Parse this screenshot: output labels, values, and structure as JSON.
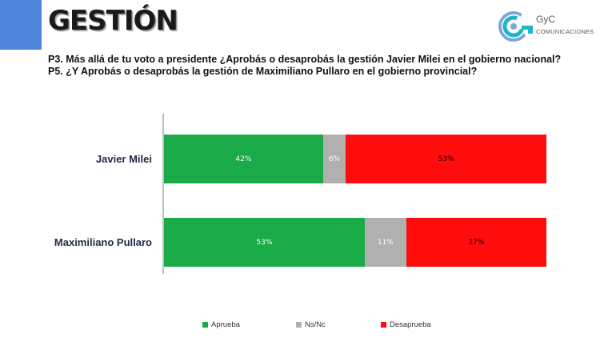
{
  "slide": {
    "title": "GESTIÓN",
    "logo": {
      "name": "GyC",
      "subtitle": "COMUNICACIONES"
    },
    "questions": [
      "P3. Más allá de tu voto a presidente ¿Aprobás o desaprobás la gestión Javier Milei en el gobierno nacional?",
      "P5. ¿Y Aprobás o desaprobás la gestión de Maximiliano Pullaro en el gobierno provincial?"
    ]
  },
  "colors": {
    "accent": "#4f86d9",
    "aprueba": "#1aaa47",
    "nsnc": "#b0b0b0",
    "desaprueba": "#ff0d0d"
  },
  "chart_data": {
    "type": "bar",
    "orientation": "horizontal",
    "stacked": true,
    "categories": [
      "Javier Milei",
      "Maximiliano Pullaro"
    ],
    "series": [
      {
        "name": "Aprueba",
        "values": [
          42,
          53
        ],
        "labels": [
          "42%",
          "53%"
        ],
        "color": "#1aaa47",
        "label_color": "#ffffff"
      },
      {
        "name": "Ns/Nc",
        "values": [
          6,
          11
        ],
        "labels": [
          "6%",
          "11%"
        ],
        "color": "#b0b0b0",
        "label_color": "#ffffff"
      },
      {
        "name": "Desaprueba",
        "values": [
          53,
          37
        ],
        "labels": [
          "53%",
          "37%"
        ],
        "color": "#ff0d0d",
        "label_color": "#000000"
      }
    ],
    "xlim": [
      0,
      101
    ],
    "legend": "bottom",
    "grid": false
  }
}
